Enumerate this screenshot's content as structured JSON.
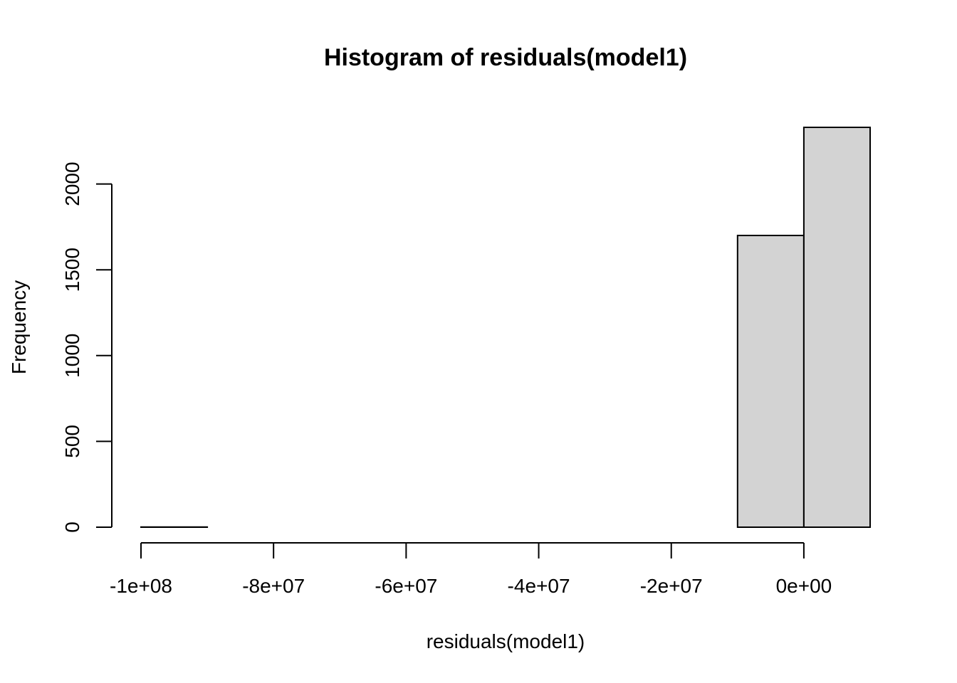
{
  "chart_data": {
    "type": "bar",
    "title": "Histogram of residuals(model1)",
    "xlabel": "residuals(model1)",
    "ylabel": "Frequency",
    "bar_color": "#d3d3d3",
    "edge_color": "#000000",
    "bins": [
      {
        "start": -100000000,
        "end": -90000000,
        "count": 1
      },
      {
        "start": -90000000,
        "end": -80000000,
        "count": 0
      },
      {
        "start": -80000000,
        "end": -70000000,
        "count": 0
      },
      {
        "start": -70000000,
        "end": -60000000,
        "count": 0
      },
      {
        "start": -60000000,
        "end": -50000000,
        "count": 0
      },
      {
        "start": -50000000,
        "end": -40000000,
        "count": 0
      },
      {
        "start": -40000000,
        "end": -30000000,
        "count": 0
      },
      {
        "start": -30000000,
        "end": -20000000,
        "count": 0
      },
      {
        "start": -20000000,
        "end": -10000000,
        "count": 0
      },
      {
        "start": -10000000,
        "end": 0,
        "count": 1700
      },
      {
        "start": 0,
        "end": 10000000,
        "count": 2330
      }
    ],
    "xlim": [
      -100000000,
      10000000
    ],
    "ylim": [
      0,
      2330
    ],
    "x_ticks": [
      {
        "value": -100000000,
        "label": "-1e+08"
      },
      {
        "value": -80000000,
        "label": "-8e+07"
      },
      {
        "value": -60000000,
        "label": "-6e+07"
      },
      {
        "value": -40000000,
        "label": "-4e+07"
      },
      {
        "value": -20000000,
        "label": "-2e+07"
      },
      {
        "value": 0,
        "label": "0e+00"
      }
    ],
    "y_ticks": [
      {
        "value": 0,
        "label": "0"
      },
      {
        "value": 500,
        "label": "500"
      },
      {
        "value": 1000,
        "label": "1000"
      },
      {
        "value": 1500,
        "label": "1500"
      },
      {
        "value": 2000,
        "label": "2000"
      }
    ]
  }
}
